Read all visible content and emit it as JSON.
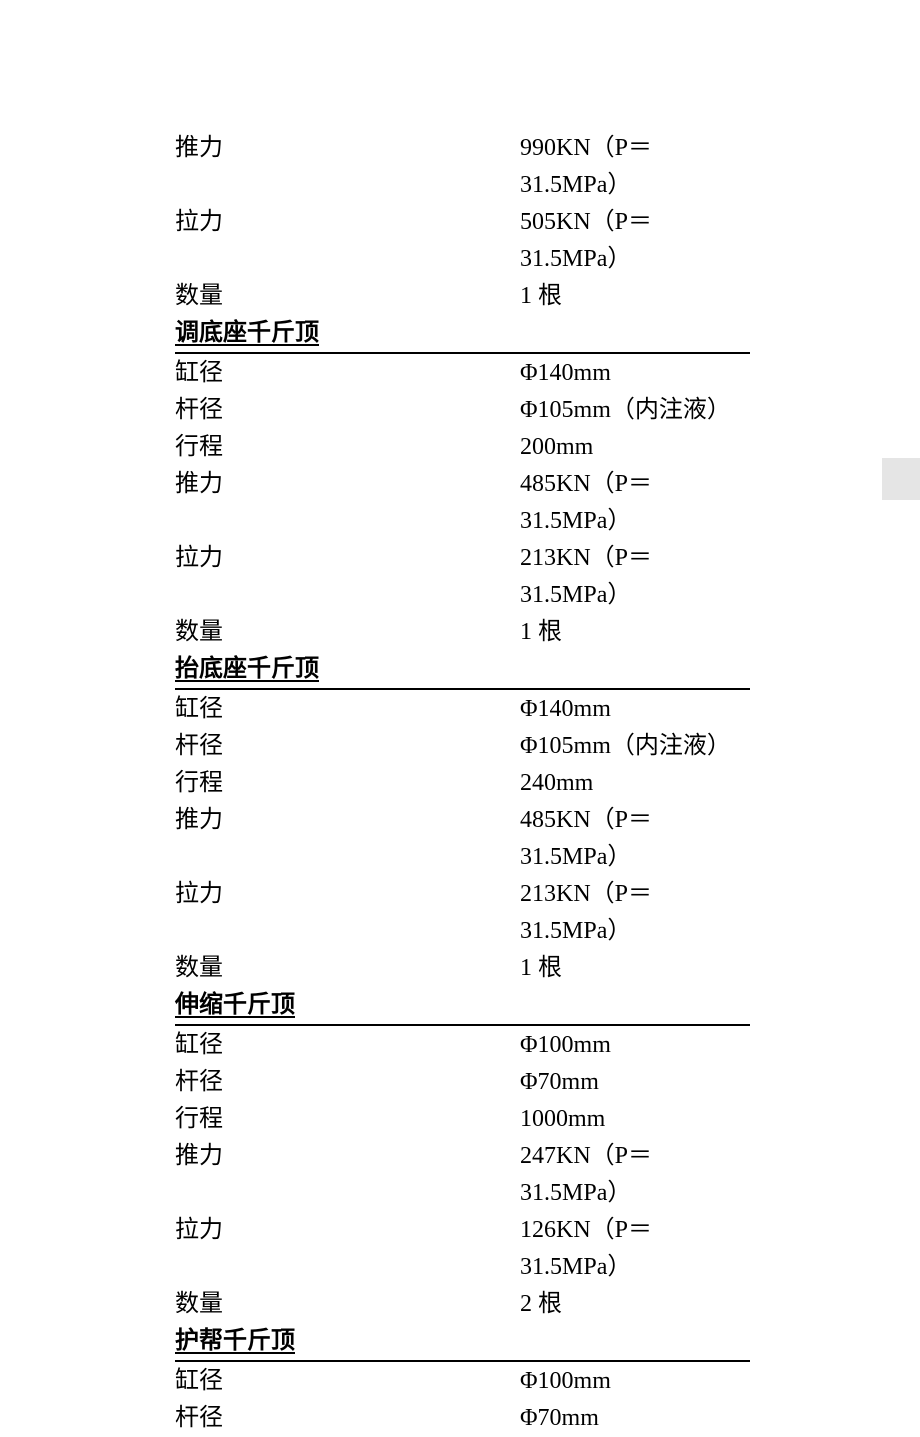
{
  "initial_rows": [
    {
      "label": "推力",
      "value": "990KN（P＝31.5MPa）"
    },
    {
      "label": "拉力",
      "value": "505KN（P＝31.5MPa）"
    },
    {
      "label": "数量",
      "value": "1 根"
    }
  ],
  "sections": [
    {
      "title": "调底座千斤顶",
      "rows": [
        {
          "label": "缸径",
          "value": "Φ140mm"
        },
        {
          "label": "杆径",
          "value": "Φ105mm（内注液）"
        },
        {
          "label": "行程",
          "value": "200mm"
        },
        {
          "label": "推力",
          "value": "485KN（P＝31.5MPa）"
        },
        {
          "label": "拉力",
          "value": "213KN（P＝31.5MPa）"
        },
        {
          "label": "数量",
          "value": "1 根"
        }
      ]
    },
    {
      "title": "抬底座千斤顶",
      "rows": [
        {
          "label": "缸径",
          "value": "Φ140mm"
        },
        {
          "label": "杆径",
          "value": "Φ105mm（内注液）"
        },
        {
          "label": "行程",
          "value": "240mm"
        },
        {
          "label": "推力",
          "value": "485KN（P＝31.5MPa）"
        },
        {
          "label": "拉力",
          "value": "213KN（P＝31.5MPa）"
        },
        {
          "label": "数量",
          "value": "1 根"
        }
      ]
    },
    {
      "title": "伸缩千斤顶",
      "rows": [
        {
          "label": "缸径",
          "value": "Φ100mm"
        },
        {
          "label": "杆径",
          "value": "Φ70mm"
        },
        {
          "label": "行程",
          "value": "1000mm"
        },
        {
          "label": "推力",
          "value": "247KN（P＝31.5MPa）"
        },
        {
          "label": "拉力",
          "value": "126KN（P＝31.5MPa）"
        },
        {
          "label": "数量",
          "value": "2 根"
        }
      ]
    },
    {
      "title": "护帮千斤顶",
      "rows": [
        {
          "label": "缸径",
          "value": "Φ100mm"
        },
        {
          "label": "杆径",
          "value": "Φ70mm"
        }
      ]
    }
  ]
}
